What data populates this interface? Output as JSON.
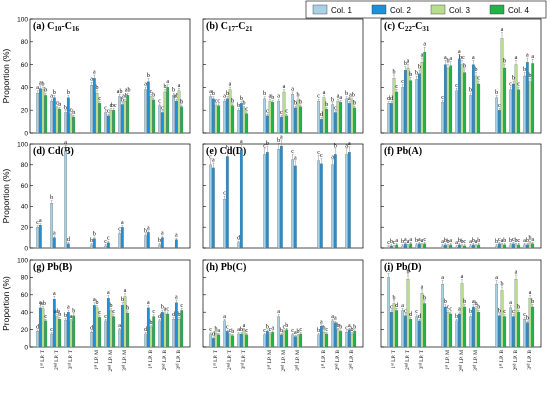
{
  "figure": {
    "y_axis_label": "Proportion (%)",
    "legend": [
      {
        "name": "Col. 1",
        "color": "#a9d1e6"
      },
      {
        "name": "Col. 2",
        "color": "#1f8fd6"
      },
      {
        "name": "Col. 3",
        "color": "#b7dd8e"
      },
      {
        "name": "Col. 4",
        "color": "#22b24c"
      }
    ],
    "legend_placement": "top-right",
    "x_categories": [
      "1st LP. T",
      "2nd LP. T",
      "3rd LP. T",
      "1st LP. M",
      "2nd LP. M",
      "3rd LP. M",
      "1st LP. B",
      "2nd LP. B",
      "3rd LP. B"
    ],
    "x_tick_labels": [
      {
        "ordinal": "1",
        "sup": "st",
        "rest": " LP. T"
      },
      {
        "ordinal": "2",
        "sup": "nd",
        "rest": " LP. T"
      },
      {
        "ordinal": "3",
        "sup": "rd",
        "rest": " LP. T"
      },
      {
        "ordinal": "1",
        "sup": "st",
        "rest": " LP. M"
      },
      {
        "ordinal": "2",
        "sup": "nd",
        "rest": " LP. M"
      },
      {
        "ordinal": "3",
        "sup": "rd",
        "rest": " LP. M"
      },
      {
        "ordinal": "1",
        "sup": "st",
        "rest": " LP. B"
      },
      {
        "ordinal": "2",
        "sup": "nd",
        "rest": " LP. B"
      },
      {
        "ordinal": "3",
        "sup": "rd",
        "rest": " LP. B"
      }
    ],
    "y_ticks": [
      "0",
      "20",
      "40",
      "60",
      "80",
      "100"
    ]
  },
  "chart_data": [
    {
      "type": "bar",
      "panel": "a",
      "title": "(a) C10-C16",
      "title_parts": [
        {
          "t": "(a) C"
        },
        {
          "t": "10",
          "sub": true
        },
        {
          "t": "-C"
        },
        {
          "t": "16",
          "sub": true
        }
      ],
      "ylim": [
        0,
        100
      ],
      "grid": false,
      "series": [
        {
          "name": "Col. 1",
          "values": [
            35,
            28,
            18,
            42,
            18,
            32,
            38,
            24,
            33
          ]
        },
        {
          "name": "Col. 2",
          "values": [
            39,
            31,
            31,
            48,
            15,
            25,
            45,
            18,
            28
          ]
        },
        {
          "name": "Col. 3",
          "values": [
            38,
            22,
            16,
            35,
            20,
            28,
            32,
            36,
            37
          ]
        },
        {
          "name": "Col. 4",
          "values": [
            33,
            21,
            14,
            26,
            20,
            33,
            29,
            40,
            23
          ]
        }
      ],
      "letters": [
        [
          "a",
          "a",
          "b",
          "a",
          "c",
          "ab",
          "a",
          "c",
          "b"
        ],
        [
          "a",
          "b",
          "b",
          "a",
          "c",
          "b",
          "b",
          "c",
          "ab"
        ],
        [
          "b",
          "c",
          "c",
          "b",
          "c",
          "ab",
          "c",
          "b",
          "a"
        ],
        [
          "b",
          "b",
          "b",
          "c",
          "bc",
          "ab",
          "b",
          "a",
          "b"
        ]
      ]
    },
    {
      "type": "bar",
      "panel": "b",
      "title": "(b) C17-C21",
      "title_parts": [
        {
          "t": "(b) C"
        },
        {
          "t": "17",
          "sub": true
        },
        {
          "t": "-C"
        },
        {
          "t": "21",
          "sub": true
        }
      ],
      "ylim": [
        0,
        100
      ],
      "grid": false,
      "series": [
        {
          "name": "Col. 1",
          "values": [
            32,
            28,
            20,
            30,
            28,
            34,
            28,
            25,
            30
          ]
        },
        {
          "name": "Col. 2",
          "values": [
            30,
            30,
            26,
            15,
            14,
            22,
            12,
            18,
            26
          ]
        },
        {
          "name": "Col. 3",
          "values": [
            24,
            38,
            22,
            28,
            36,
            29,
            31,
            28,
            29
          ]
        },
        {
          "name": "Col. 4",
          "values": [
            24,
            24,
            17,
            27,
            15,
            23,
            21,
            27,
            22
          ]
        }
      ],
      "letters": [
        [
          "a",
          "a",
          "b",
          "b",
          "a",
          "a",
          "c",
          "b",
          "b"
        ],
        [
          "b",
          "b",
          "b",
          "c",
          "c",
          "b",
          "d",
          "c",
          "a"
        ],
        [
          "c",
          "a",
          "b",
          "a",
          "a",
          "b",
          "a",
          "a",
          "ab"
        ],
        [
          "c",
          "b",
          "c",
          "b",
          "c",
          "b",
          "b",
          "a",
          "b"
        ]
      ]
    },
    {
      "type": "bar",
      "panel": "c",
      "title": "(c) C22-C31",
      "title_parts": [
        {
          "t": "(c) C"
        },
        {
          "t": "22",
          "sub": true
        },
        {
          "t": "-C"
        },
        {
          "t": "31",
          "sub": true
        }
      ],
      "ylim": [
        0,
        100
      ],
      "grid": false,
      "series": [
        {
          "name": "Col. 1",
          "values": [
            26,
            40,
            47,
            27,
            37,
            33,
            31,
            38,
            50
          ]
        },
        {
          "name": "Col. 2",
          "values": [
            26,
            55,
            52,
            60,
            65,
            60,
            20,
            43,
            62
          ]
        },
        {
          "name": "Col. 3",
          "values": [
            48,
            57,
            62,
            57,
            60,
            50,
            83,
            60,
            45
          ]
        },
        {
          "name": "Col. 4",
          "values": [
            36,
            46,
            71,
            59,
            53,
            43,
            57,
            38,
            61
          ]
        }
      ],
      "letters": [
        [
          "d",
          "c",
          "b",
          "c",
          "c",
          "b",
          "b",
          "c",
          "b"
        ],
        [
          "d",
          "b",
          "b",
          "a",
          "a",
          "a",
          "c",
          "b",
          "a"
        ],
        [
          "b",
          "a",
          "a",
          "b",
          "bc",
          "b",
          "a",
          "a",
          "b"
        ],
        [
          "c",
          "b",
          "a",
          "a",
          "b",
          "c",
          "b",
          "c",
          "a"
        ]
      ]
    },
    {
      "type": "bar",
      "panel": "d",
      "title": "(d) Cd(B)",
      "title_parts": [
        {
          "t": "(d) Cd(B)"
        }
      ],
      "ylim": [
        0,
        100
      ],
      "grid": false,
      "series": [
        {
          "name": "Col. 1",
          "values": [
            20,
            43,
            93,
            3,
            2,
            14,
            12,
            3,
            0
          ]
        },
        {
          "name": "Col. 2",
          "values": [
            22,
            10,
            4,
            9,
            5,
            20,
            15,
            10,
            8
          ]
        },
        {
          "name": "Col. 3",
          "values": [
            0,
            0,
            0,
            0,
            0,
            0,
            0,
            0,
            0
          ]
        },
        {
          "name": "Col. 4",
          "values": [
            0,
            0,
            0,
            0,
            0,
            0,
            0,
            0,
            0
          ]
        }
      ],
      "letters": [
        [
          "c",
          "b",
          "a",
          "b",
          "c",
          "c",
          "b",
          "b",
          ""
        ],
        [
          "a",
          "a",
          "d",
          "b",
          "c",
          "a",
          "a",
          "a",
          "a"
        ],
        [
          "",
          "",
          "",
          "",
          "",
          "",
          "",
          "",
          ""
        ],
        [
          "",
          "",
          "",
          "",
          "",
          "",
          "",
          "",
          ""
        ]
      ]
    },
    {
      "type": "bar",
      "panel": "e",
      "title": "(e) Cd(D)",
      "title_parts": [
        {
          "t": "(e) Cd(D)"
        }
      ],
      "ylim": [
        0,
        100
      ],
      "grid": false,
      "series": [
        {
          "name": "Col. 1",
          "values": [
            80,
            47,
            5,
            90,
            95,
            85,
            84,
            80,
            90
          ]
        },
        {
          "name": "Col. 2",
          "values": [
            77,
            88,
            94,
            92,
            98,
            79,
            81,
            90,
            92
          ]
        },
        {
          "name": "Col. 3",
          "values": [
            0,
            0,
            0,
            0,
            0,
            0,
            0,
            0,
            0
          ]
        },
        {
          "name": "Col. 4",
          "values": [
            0,
            0,
            0,
            0,
            0,
            0,
            0,
            0,
            0
          ]
        }
      ],
      "letters": [
        [
          "c",
          "c",
          "d",
          "c",
          "b",
          "c",
          "c",
          "a",
          "a"
        ],
        [
          "a",
          "b",
          "a",
          "b",
          "a",
          "a",
          "c",
          "b",
          "a"
        ],
        [
          "",
          "",
          "",
          "",
          "",
          "",
          "",
          "",
          ""
        ],
        [
          "",
          "",
          "",
          "",
          "",
          "",
          "",
          "",
          ""
        ]
      ]
    },
    {
      "type": "bar",
      "panel": "f",
      "title": "(f) Pb(A)",
      "title_parts": [
        {
          "t": "(f) Pb(A)"
        }
      ],
      "ylim": [
        0,
        100
      ],
      "grid": false,
      "series": [
        {
          "name": "Col. 1",
          "values": [
            1,
            2,
            3,
            2,
            1,
            2,
            2,
            3,
            3
          ]
        },
        {
          "name": "Col. 2",
          "values": [
            2,
            4,
            4,
            3,
            3,
            3,
            4,
            4,
            3
          ]
        },
        {
          "name": "Col. 3",
          "values": [
            1,
            2,
            3,
            2,
            2,
            2,
            3,
            3,
            5
          ]
        },
        {
          "name": "Col. 4",
          "values": [
            3,
            4,
            4,
            3,
            2,
            3,
            3,
            3,
            4
          ]
        }
      ],
      "letters": [
        [
          "c",
          "b",
          "b",
          "a",
          "a",
          "a",
          "b",
          "b",
          "a"
        ],
        [
          "b",
          "a",
          "a",
          "b",
          "b",
          "b",
          "c",
          "c",
          "b"
        ],
        [
          "c",
          "a",
          "a",
          "b",
          "b",
          "a",
          "a",
          "b",
          "b"
        ],
        [
          "a",
          "a",
          "c",
          "a",
          "c",
          "b",
          "b",
          "c",
          "a"
        ]
      ]
    },
    {
      "type": "bar",
      "panel": "g",
      "title": "(g) Pb(B)",
      "title_parts": [
        {
          "t": "(g) Pb(B)"
        }
      ],
      "ylim": [
        0,
        100
      ],
      "grid": false,
      "series": [
        {
          "name": "Col. 1",
          "values": [
            18,
            15,
            31,
            17,
            30,
            20,
            15,
            30,
            32
          ]
        },
        {
          "name": "Col. 2",
          "values": [
            45,
            55,
            40,
            48,
            56,
            48,
            45,
            40,
            51
          ]
        },
        {
          "name": "Col. 3",
          "values": [
            44,
            35,
            30,
            45,
            42,
            58,
            23,
            38,
            32
          ]
        },
        {
          "name": "Col. 4",
          "values": [
            30,
            32,
            36,
            34,
            35,
            39,
            35,
            38,
            42
          ]
        }
      ],
      "letters": [
        [
          "d",
          "c",
          "b",
          "d",
          "c",
          "a",
          "d",
          "d",
          "d"
        ],
        [
          "a",
          "a",
          "a",
          "a",
          "a",
          "b",
          "a",
          "b",
          "a"
        ],
        [
          "ab",
          "ab",
          "a",
          "b",
          "b",
          "a",
          "b",
          "a",
          "b"
        ],
        [
          "c",
          "b",
          "b",
          "c",
          "c",
          "b",
          "c",
          "c",
          "c"
        ]
      ]
    },
    {
      "type": "bar",
      "panel": "h",
      "title": "(h) Pb(C)",
      "title_parts": [
        {
          "t": "(h) Pb(C)"
        }
      ],
      "ylim": [
        0,
        100
      ],
      "grid": false,
      "series": [
        {
          "name": "Col. 1",
          "values": [
            15,
            30,
            15,
            14,
            35,
            14,
            14,
            30,
            17
          ]
        },
        {
          "name": "Col. 2",
          "values": [
            10,
            18,
            15,
            18,
            14,
            12,
            24,
            28,
            20
          ]
        },
        {
          "name": "Col. 3",
          "values": [
            16,
            14,
            20,
            15,
            18,
            13,
            17,
            20,
            15
          ]
        },
        {
          "name": "Col. 4",
          "values": [
            14,
            13,
            14,
            17,
            20,
            15,
            15,
            18,
            18
          ]
        }
      ],
      "letters": [
        [
          "c",
          "a",
          "a",
          "c",
          "a",
          "c",
          "b",
          "a",
          "c"
        ],
        [
          "d",
          "c",
          "b",
          "b",
          "b",
          "a",
          "a",
          "a",
          "a"
        ],
        [
          "b",
          "c",
          "a",
          "c",
          "c",
          "b",
          "b",
          "b",
          "b"
        ],
        [
          "a",
          "b",
          "c",
          "a",
          "b",
          "c",
          "c",
          "b",
          "b"
        ]
      ]
    },
    {
      "type": "bar",
      "panel": "i",
      "title": "(i) Pb(D)",
      "title_parts": [
        {
          "t": "(i) Pb(D)"
        }
      ],
      "ylim": [
        0,
        100
      ],
      "grid": false,
      "series": [
        {
          "name": "Col. 1",
          "values": [
            80,
            42,
            35,
            72,
            30,
            35,
            72,
            45,
            32
          ]
        },
        {
          "name": "Col. 2",
          "values": [
            40,
            36,
            30,
            46,
            38,
            46,
            36,
            35,
            28
          ]
        },
        {
          "name": "Col. 3",
          "values": [
            50,
            78,
            62,
            40,
            73,
            44,
            65,
            78,
            56
          ]
        },
        {
          "name": "Col. 4",
          "values": [
            42,
            32,
            50,
            38,
            46,
            40,
            35,
            40,
            46
          ]
        }
      ],
      "letters": [
        [
          "a",
          "a",
          "c",
          "a",
          "b",
          "b",
          "a",
          "a",
          "c"
        ],
        [
          "c",
          "c",
          "d",
          "b",
          "a",
          "a",
          "b",
          "c",
          "b"
        ],
        [
          "b",
          "b",
          "a",
          "c",
          "a",
          "b",
          "b",
          "a",
          "a"
        ],
        [
          "d",
          "d",
          "b",
          "c",
          "b",
          "b",
          "c",
          "b",
          "b"
        ]
      ]
    }
  ]
}
